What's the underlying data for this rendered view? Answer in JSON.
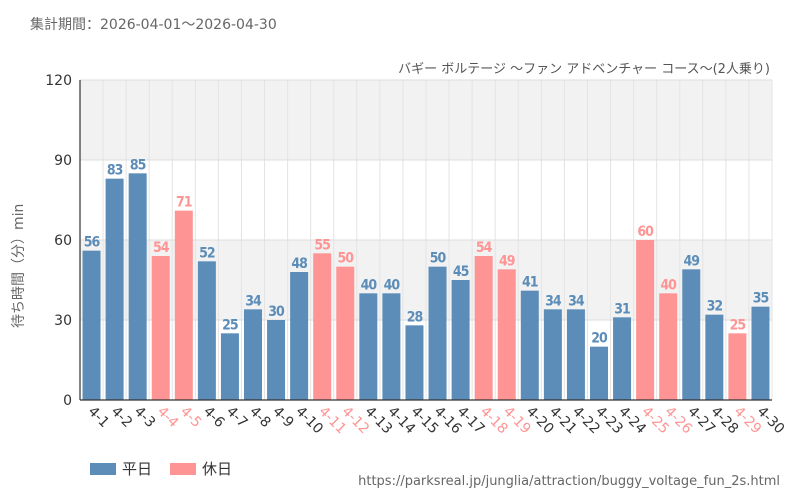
{
  "header": {
    "period_label": "集計期間：2026-04-01～2026-04-30"
  },
  "footer": {
    "source_url": "https://parksreal.jp/junglia/attraction/buggy_voltage_fun_2s.html"
  },
  "colors": {
    "weekday": "#5b8db8",
    "holiday": "#ff9494",
    "grid": "#dddddd",
    "band": "#f2f2f2"
  },
  "chart_data": {
    "type": "bar",
    "title": "バギー ボルテージ ～ファン アドベンチャー コース～(2人乗り)",
    "ylabel": "待ち時間（分）min",
    "xlabel": "",
    "ylim": [
      0,
      120
    ],
    "yticks": [
      0,
      30,
      60,
      90,
      120
    ],
    "categories": [
      "4-1",
      "4-2",
      "4-3",
      "4-4",
      "4-5",
      "4-6",
      "4-7",
      "4-8",
      "4-9",
      "4-10",
      "4-11",
      "4-12",
      "4-13",
      "4-14",
      "4-15",
      "4-16",
      "4-17",
      "4-18",
      "4-19",
      "4-20",
      "4-21",
      "4-22",
      "4-23",
      "4-24",
      "4-25",
      "4-26",
      "4-27",
      "4-28",
      "4-29",
      "4-30"
    ],
    "values": [
      56,
      83,
      85,
      54,
      71,
      52,
      25,
      34,
      30,
      48,
      55,
      50,
      40,
      40,
      28,
      50,
      45,
      54,
      49,
      41,
      34,
      34,
      20,
      31,
      60,
      40,
      49,
      32,
      25,
      35
    ],
    "day_type": [
      "weekday",
      "weekday",
      "weekday",
      "holiday",
      "holiday",
      "weekday",
      "weekday",
      "weekday",
      "weekday",
      "weekday",
      "holiday",
      "holiday",
      "weekday",
      "weekday",
      "weekday",
      "weekday",
      "weekday",
      "holiday",
      "holiday",
      "weekday",
      "weekday",
      "weekday",
      "weekday",
      "weekday",
      "holiday",
      "holiday",
      "weekday",
      "weekday",
      "holiday",
      "weekday"
    ],
    "legend": [
      {
        "name": "平日",
        "key": "weekday"
      },
      {
        "name": "休日",
        "key": "holiday"
      }
    ],
    "legend_position": "bottom-left",
    "grid": true
  }
}
